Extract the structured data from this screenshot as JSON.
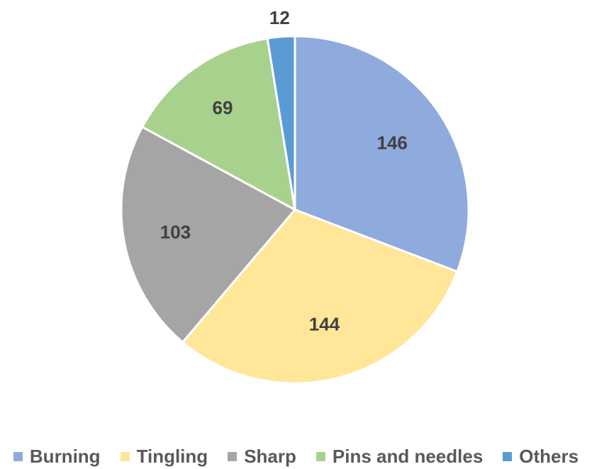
{
  "chart_data": {
    "type": "pie",
    "title": "",
    "legend_position": "bottom",
    "slices": [
      {
        "label": "Burning",
        "value": 146,
        "color": "#8FAADC"
      },
      {
        "label": "Tingling",
        "value": 144,
        "color": "#FFE699"
      },
      {
        "label": "Sharp",
        "value": 103,
        "color": "#A5A5A5"
      },
      {
        "label": "Pins and needles",
        "value": 69,
        "color": "#A9D18E"
      },
      {
        "label": "Others",
        "value": 12,
        "color": "#5B9BD5"
      }
    ]
  }
}
